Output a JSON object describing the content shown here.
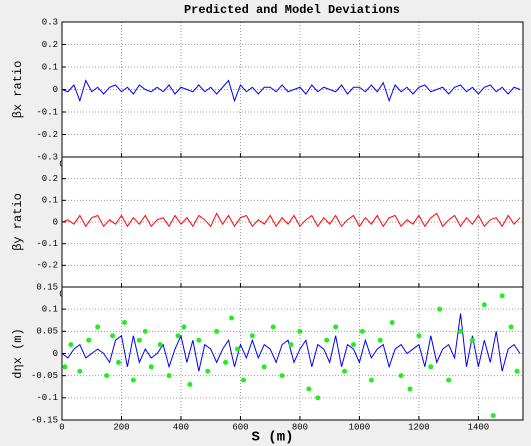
{
  "chart_data": [
    {
      "type": "line",
      "title": "Predicted and Model Deviations",
      "y_label": "βx ratio",
      "xlim": [
        0,
        1550
      ],
      "xticks": [
        0,
        200,
        400,
        600,
        800,
        1000,
        1200,
        1400
      ],
      "ylim": [
        -0.3,
        0.3
      ],
      "yticks": [
        -0.3,
        -0.2,
        -0.1,
        0,
        0.1,
        0.2,
        0.3
      ],
      "grid": true,
      "x": [
        0,
        20,
        40,
        60,
        80,
        100,
        120,
        140,
        160,
        180,
        200,
        220,
        240,
        260,
        280,
        300,
        320,
        340,
        360,
        380,
        400,
        420,
        440,
        460,
        480,
        500,
        520,
        540,
        560,
        580,
        600,
        620,
        640,
        660,
        680,
        700,
        720,
        740,
        760,
        780,
        800,
        820,
        840,
        860,
        880,
        900,
        920,
        940,
        960,
        980,
        1000,
        1020,
        1040,
        1060,
        1080,
        1100,
        1120,
        1140,
        1160,
        1180,
        1200,
        1220,
        1240,
        1260,
        1280,
        1300,
        1320,
        1340,
        1360,
        1380,
        1400,
        1420,
        1440,
        1460,
        1480,
        1500,
        1520,
        1540
      ],
      "series": [
        {
          "color": "#0000ff",
          "values": [
            0,
            -0.01,
            0.02,
            -0.05,
            0.04,
            -0.01,
            0.01,
            -0.02,
            0.01,
            0.02,
            -0.01,
            0.01,
            -0.02,
            0.02,
            0,
            -0.01,
            0.01,
            -0.01,
            0.02,
            -0.02,
            0.01,
            0,
            -0.01,
            0.02,
            -0.01,
            0.01,
            -0.02,
            0.01,
            0.04,
            -0.05,
            0.02,
            -0.01,
            0.01,
            -0.02,
            0.01,
            0.01,
            -0.01,
            0.02,
            -0.01,
            0,
            0.01,
            -0.02,
            0.02,
            -0.01,
            0.01,
            0,
            -0.01,
            0.02,
            -0.02,
            0.01,
            0.01,
            -0.01,
            0.02,
            -0.01,
            0.03,
            -0.05,
            0.02,
            -0.01,
            0.01,
            -0.02,
            0.01,
            0.02,
            -0.01,
            0,
            0.01,
            -0.02,
            0.01,
            0.02,
            -0.01,
            0.01,
            -0.02,
            0.01,
            0.02,
            -0.01,
            0.01,
            -0.02,
            0.01,
            0
          ]
        }
      ]
    },
    {
      "type": "line",
      "y_label": "βy ratio",
      "xlim": [
        0,
        1550
      ],
      "xticks": [
        0,
        200,
        400,
        600,
        800,
        1000,
        1200,
        1400
      ],
      "ylim": [
        -0.3,
        0.3
      ],
      "yticks": [
        -0.2,
        -0.1,
        0,
        0.1,
        0.2
      ],
      "grid": true,
      "x": [
        0,
        20,
        40,
        60,
        80,
        100,
        120,
        140,
        160,
        180,
        200,
        220,
        240,
        260,
        280,
        300,
        320,
        340,
        360,
        380,
        400,
        420,
        440,
        460,
        480,
        500,
        520,
        540,
        560,
        580,
        600,
        620,
        640,
        660,
        680,
        700,
        720,
        740,
        760,
        780,
        800,
        820,
        840,
        860,
        880,
        900,
        920,
        940,
        960,
        980,
        1000,
        1020,
        1040,
        1060,
        1080,
        1100,
        1120,
        1140,
        1160,
        1180,
        1200,
        1220,
        1240,
        1260,
        1280,
        1300,
        1320,
        1340,
        1360,
        1380,
        1400,
        1420,
        1440,
        1460,
        1480,
        1500,
        1520,
        1540
      ],
      "series": [
        {
          "color": "#ff0000",
          "values": [
            0,
            0.01,
            -0.01,
            0.03,
            -0.02,
            0.02,
            0.03,
            -0.02,
            0.01,
            -0.01,
            0.03,
            -0.02,
            0.02,
            -0.01,
            0.03,
            -0.02,
            0.01,
            0.02,
            -0.02,
            0.03,
            -0.01,
            0.02,
            -0.02,
            0.03,
            0.01,
            -0.02,
            0.04,
            -0.01,
            0.03,
            -0.02,
            0.02,
            0.03,
            -0.02,
            0.01,
            -0.01,
            0.03,
            -0.02,
            0.02,
            -0.01,
            0.03,
            -0.02,
            0.01,
            0.03,
            -0.02,
            0.02,
            -0.01,
            0.03,
            -0.02,
            0.01,
            0.03,
            -0.02,
            0.02,
            -0.01,
            0.03,
            -0.02,
            0.02,
            0.03,
            -0.02,
            0.01,
            -0.01,
            0.03,
            -0.02,
            0.02,
            0.04,
            -0.02,
            0.01,
            0.03,
            -0.02,
            0.02,
            -0.01,
            0.03,
            -0.02,
            0.01,
            0.02,
            -0.02,
            0.03,
            -0.01,
            0.02
          ]
        }
      ]
    },
    {
      "type": "line",
      "y_label": "dηx (m)",
      "x_label": "S  (m)",
      "xlim": [
        0,
        1550
      ],
      "xticks": [
        0,
        200,
        400,
        600,
        800,
        1000,
        1200,
        1400
      ],
      "ylim": [
        -0.15,
        0.15
      ],
      "yticks": [
        -0.15,
        -0.1,
        -0.05,
        0,
        0.05,
        0.1,
        0.15
      ],
      "grid": true,
      "x": [
        0,
        20,
        40,
        60,
        80,
        100,
        120,
        140,
        160,
        180,
        200,
        220,
        240,
        260,
        280,
        300,
        320,
        340,
        360,
        380,
        400,
        420,
        440,
        460,
        480,
        500,
        520,
        540,
        560,
        580,
        600,
        620,
        640,
        660,
        680,
        700,
        720,
        740,
        760,
        780,
        800,
        820,
        840,
        860,
        880,
        900,
        920,
        940,
        960,
        980,
        1000,
        1020,
        1040,
        1060,
        1080,
        1100,
        1120,
        1140,
        1160,
        1180,
        1200,
        1220,
        1240,
        1260,
        1280,
        1300,
        1320,
        1340,
        1360,
        1380,
        1400,
        1420,
        1440,
        1460,
        1480,
        1500,
        1520,
        1540
      ],
      "series": [
        {
          "color": "#0000ff",
          "values": [
            0,
            -0.01,
            0.01,
            0.02,
            -0.01,
            0,
            0.01,
            0,
            -0.02,
            0.03,
            0.04,
            -0.03,
            0.04,
            -0.02,
            0.01,
            -0.01,
            0,
            0.02,
            -0.03,
            0.01,
            0.04,
            -0.02,
            0.03,
            -0.04,
            0.02,
            0.01,
            -0.02,
            0.01,
            0.03,
            -0.03,
            0.02,
            -0.01,
            0.03,
            -0.01,
            0.02,
            0.01,
            -0.02,
            0.02,
            0.03,
            -0.02,
            0.01,
            0.03,
            -0.03,
            0.02,
            0.01,
            -0.02,
            0.04,
            -0.03,
            0.02,
            0.01,
            -0.02,
            0.03,
            -0.01,
            0.01,
            0.02,
            -0.03,
            0.01,
            0.02,
            0,
            0.01,
            0.02,
            -0.03,
            0.04,
            -0.02,
            0.01,
            0.02,
            -0.01,
            0.09,
            -0.03,
            0.04,
            -0.03,
            0.03,
            -0.02,
            0.05,
            -0.04,
            0.01,
            0.02,
            0
          ]
        },
        {
          "color": "#22ee22",
          "mode": "markers",
          "x": [
            10,
            30,
            60,
            90,
            120,
            150,
            170,
            190,
            210,
            240,
            260,
            280,
            300,
            330,
            360,
            390,
            410,
            430,
            460,
            490,
            520,
            550,
            570,
            590,
            610,
            640,
            680,
            710,
            740,
            770,
            800,
            830,
            860,
            890,
            920,
            950,
            980,
            1010,
            1040,
            1070,
            1110,
            1140,
            1170,
            1200,
            1240,
            1270,
            1300,
            1340,
            1380,
            1420,
            1450,
            1480,
            1510,
            1530
          ],
          "values": [
            -0.03,
            0.02,
            -0.04,
            0.03,
            0.06,
            -0.05,
            0.04,
            -0.02,
            0.07,
            -0.06,
            0.03,
            0.05,
            -0.03,
            0.02,
            -0.05,
            0.04,
            0.06,
            -0.07,
            0.03,
            -0.04,
            0.05,
            -0.02,
            0.08,
            0.01,
            -0.06,
            0.04,
            -0.03,
            0.06,
            -0.05,
            0.02,
            0.05,
            -0.08,
            -0.1,
            0.03,
            0.06,
            -0.04,
            0.02,
            0.05,
            -0.06,
            0.03,
            0.07,
            -0.05,
            -0.08,
            0.04,
            -0.03,
            0.1,
            -0.06,
            0.05,
            0.03,
            0.11,
            -0.14,
            0.13,
            0.06,
            -0.04
          ]
        }
      ]
    }
  ]
}
